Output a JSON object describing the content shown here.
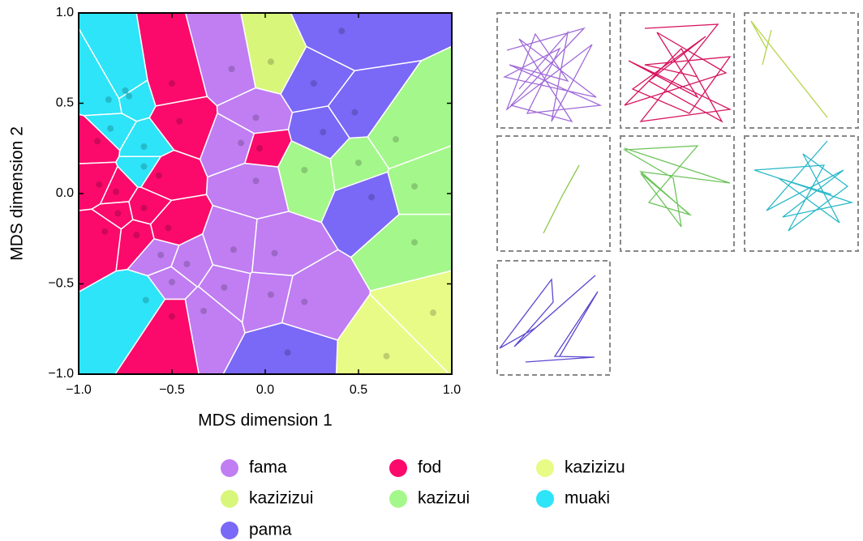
{
  "chart_data": {
    "type": "voronoi",
    "x_label": "MDS dimension 1",
    "y_label": "MDS dimension 2",
    "xlim": [
      -1,
      1
    ],
    "ylim": [
      -1,
      1
    ],
    "xticks": [
      {
        "value": -1,
        "label": "−1.0"
      },
      {
        "value": -0.5,
        "label": "−0.5"
      },
      {
        "value": 0,
        "label": "0.0"
      },
      0.5,
      {
        "value": 1,
        "label": "1.0"
      }
    ],
    "yticks": [
      {
        "value": -1,
        "label": "−1.0"
      },
      {
        "value": -0.5,
        "label": "−0.5"
      },
      {
        "value": 0,
        "label": "0.0"
      },
      0.5,
      {
        "value": 1,
        "label": "1.0"
      }
    ],
    "series": [
      {
        "name": "fama",
        "color": "#c07ef2",
        "x": [
          -0.18,
          -0.05,
          -0.13,
          -0.05,
          -0.56,
          -0.42,
          -0.5,
          -0.17,
          0.05,
          -0.22,
          -0.33,
          0.03,
          0.21
        ],
        "y": [
          0.69,
          0.42,
          0.28,
          0.07,
          -0.34,
          -0.39,
          -0.49,
          -0.31,
          -0.33,
          -0.52,
          -0.65,
          -0.56,
          -0.6
        ]
      },
      {
        "name": "fod",
        "color": "#fb0a6b",
        "x": [
          -0.5,
          -0.46,
          -0.9,
          -0.57,
          -0.89,
          -0.8,
          -0.79,
          -0.65,
          -0.86,
          -0.69,
          -0.52,
          -0.5,
          -0.03
        ],
        "y": [
          0.61,
          0.4,
          0.29,
          0.1,
          0.05,
          0.01,
          -0.11,
          -0.08,
          -0.21,
          -0.23,
          -0.19,
          -0.68,
          0.25
        ]
      },
      {
        "name": "kazizizu",
        "color": "#e8fb86",
        "x": [
          0.9,
          0.65
        ],
        "y": [
          -0.66,
          -0.9
        ]
      },
      {
        "name": "kazizizui",
        "color": "#d8f67a",
        "x": [
          0.03
        ],
        "y": [
          0.73
        ]
      },
      {
        "name": "kazizui",
        "color": "#a4f78a",
        "x": [
          0.7,
          0.21,
          0.5,
          0.8,
          0.8
        ],
        "y": [
          0.3,
          0.13,
          0.17,
          0.04,
          -0.27
        ]
      },
      {
        "name": "muaki",
        "color": "#2de4f8",
        "x": [
          -0.75,
          -0.73,
          -0.84,
          -0.83,
          -0.65,
          -0.65,
          -0.64
        ],
        "y": [
          0.57,
          0.54,
          0.52,
          0.36,
          0.26,
          0.15,
          -0.59
        ]
      },
      {
        "name": "pama",
        "color": "#7a68f6",
        "x": [
          0.41,
          0.26,
          0.48,
          0.31,
          0.57,
          0.12
        ],
        "y": [
          0.9,
          0.61,
          0.45,
          0.34,
          -0.02,
          -0.88
        ]
      }
    ]
  }
}
